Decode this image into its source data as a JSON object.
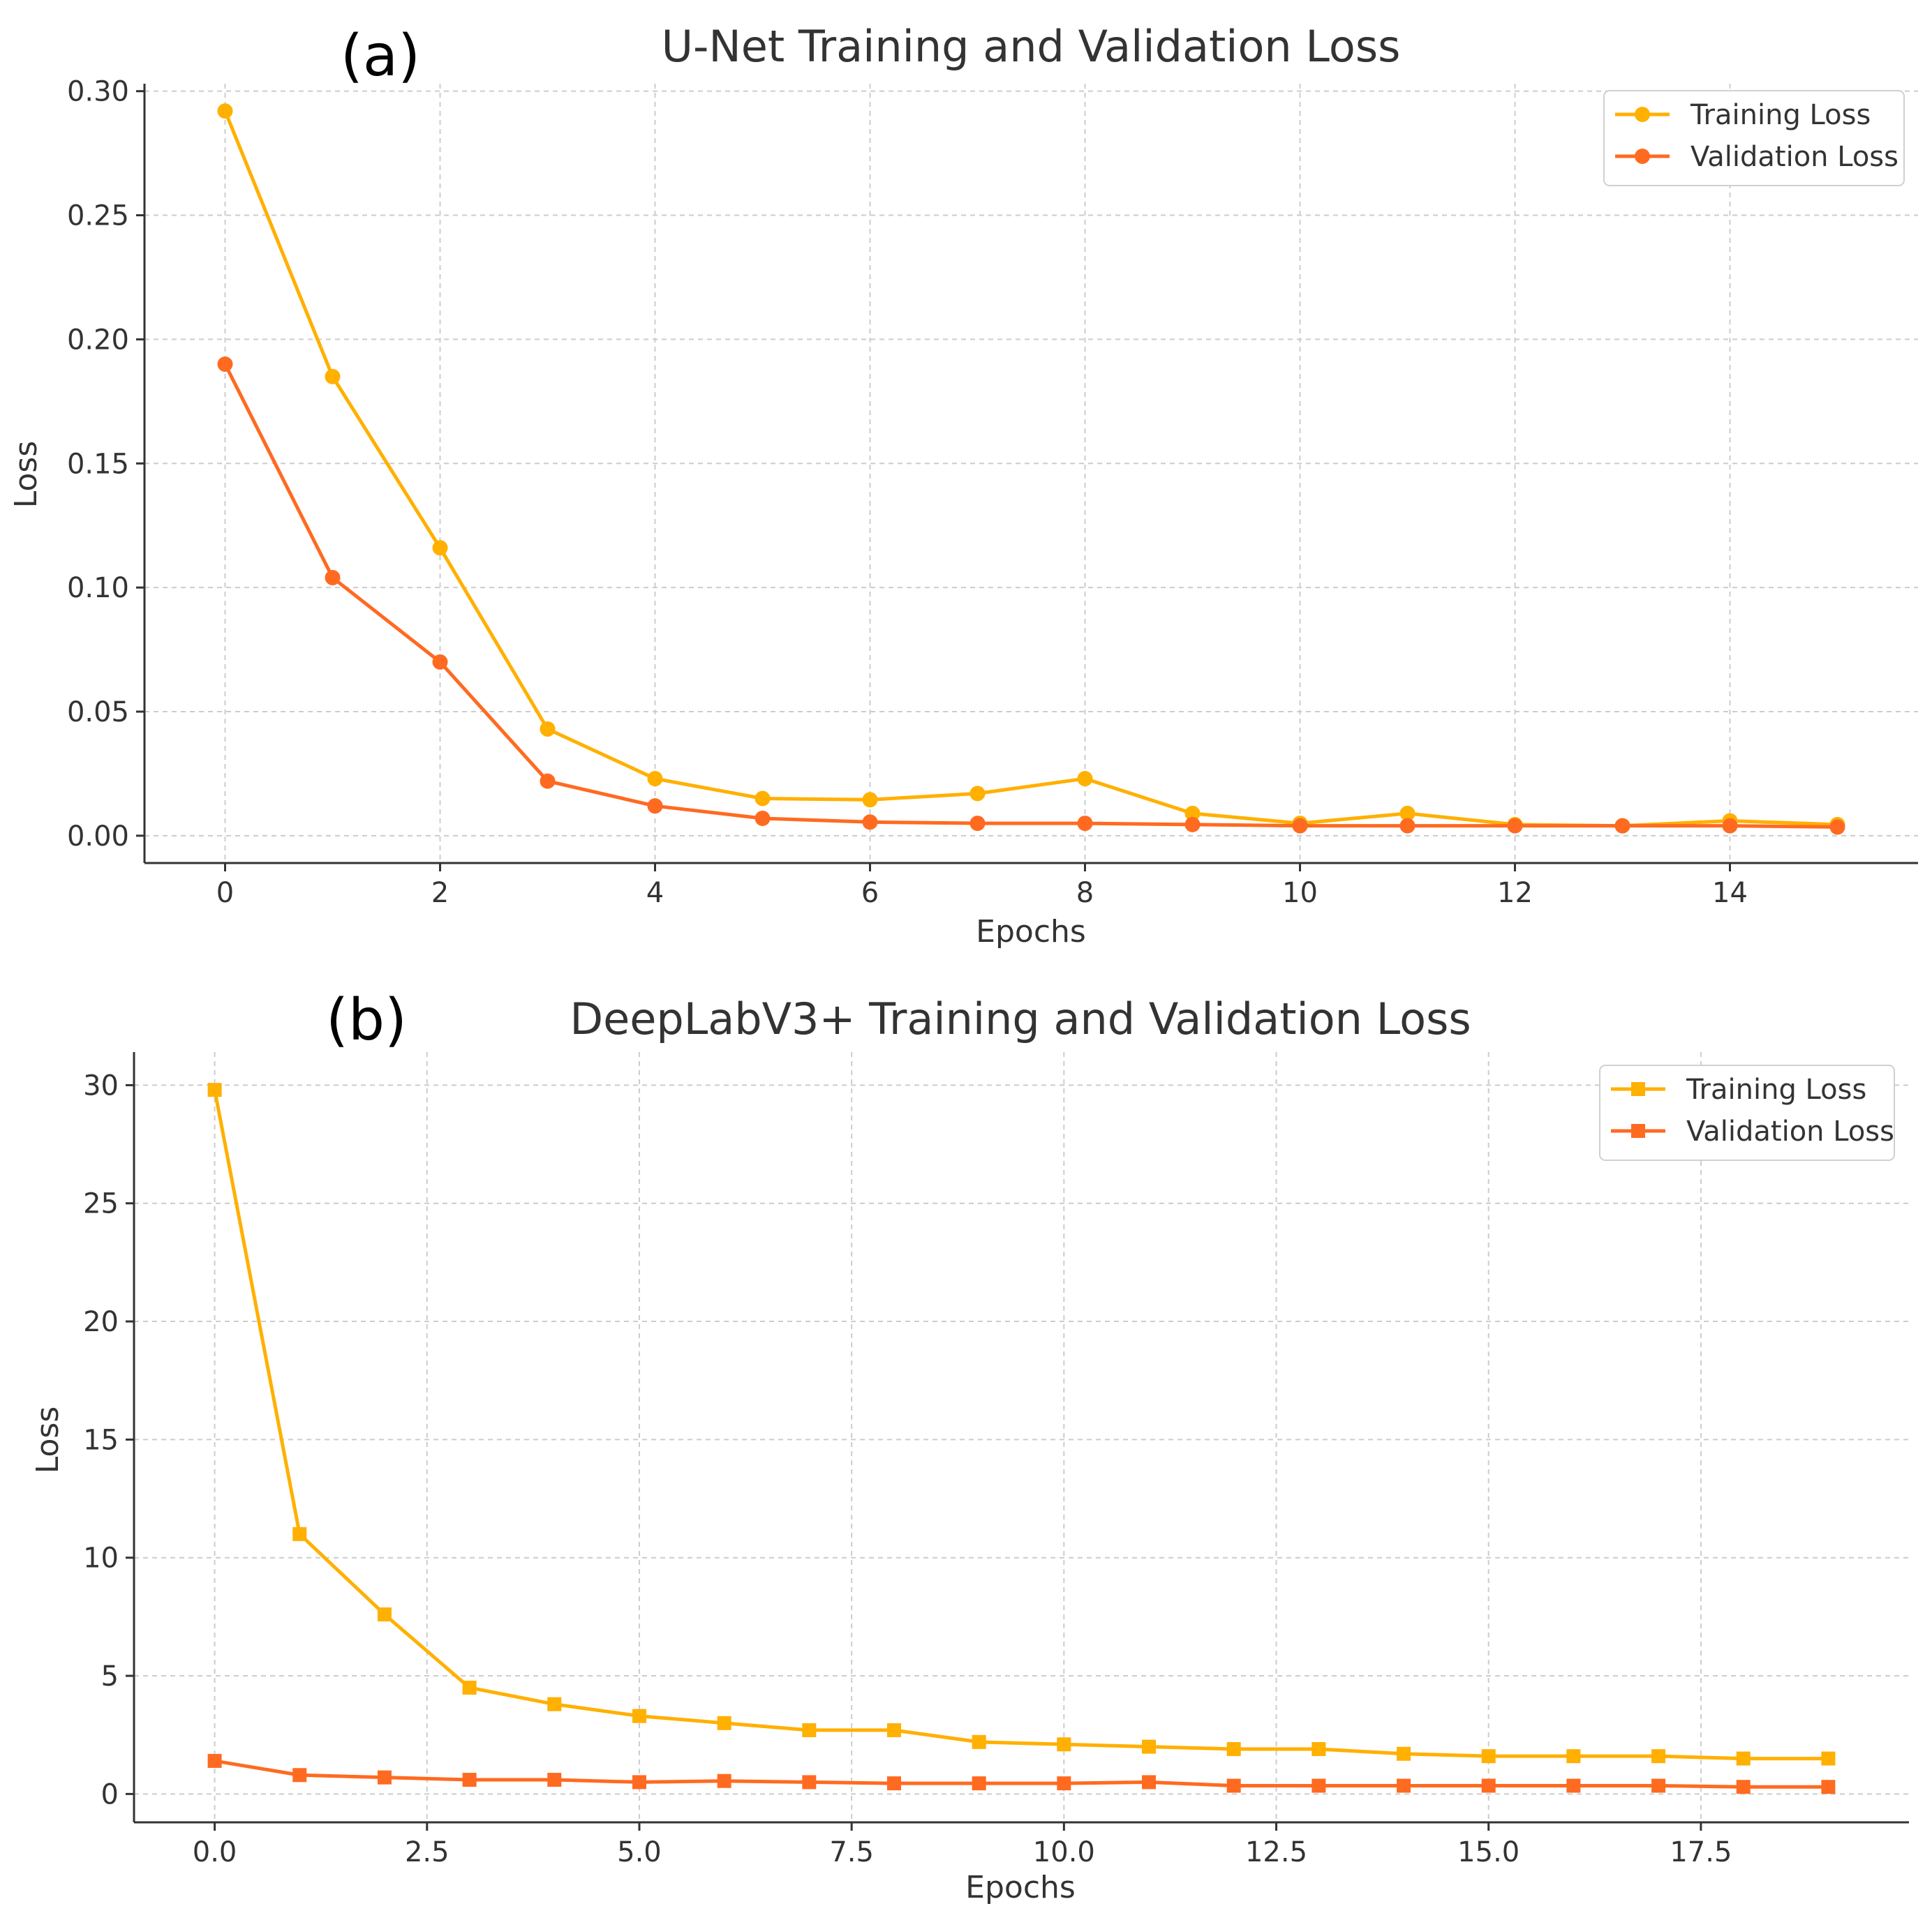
{
  "chart_data": [
    {
      "type": "line",
      "panel_label": "(a)",
      "title": "U-Net Training and Validation Loss",
      "xlabel": "Epochs",
      "ylabel": "Loss",
      "xlim": [
        -0.75,
        15.75
      ],
      "ylim": [
        -0.011,
        0.303
      ],
      "xticks": [
        0,
        2,
        4,
        6,
        8,
        10,
        12,
        14
      ],
      "xtick_labels": [
        "0",
        "2",
        "4",
        "6",
        "8",
        "10",
        "12",
        "14"
      ],
      "yticks": [
        0.0,
        0.05,
        0.1,
        0.15,
        0.2,
        0.25,
        0.3
      ],
      "ytick_labels": [
        "0.00",
        "0.05",
        "0.10",
        "0.15",
        "0.20",
        "0.25",
        "0.30"
      ],
      "grid": true,
      "legend_position": "top-right",
      "marker": "circle",
      "x": [
        0,
        1,
        2,
        3,
        4,
        5,
        6,
        7,
        8,
        9,
        10,
        11,
        12,
        13,
        14,
        15
      ],
      "series": [
        {
          "name": "Training Loss",
          "color": "#FFB000",
          "values": [
            0.292,
            0.185,
            0.116,
            0.043,
            0.023,
            0.015,
            0.0145,
            0.017,
            0.023,
            0.009,
            0.005,
            0.009,
            0.0045,
            0.004,
            0.006,
            0.0045
          ]
        },
        {
          "name": "Validation Loss",
          "color": "#FF6A21",
          "values": [
            0.19,
            0.104,
            0.07,
            0.022,
            0.012,
            0.007,
            0.0055,
            0.005,
            0.005,
            0.0045,
            0.004,
            0.004,
            0.004,
            0.004,
            0.004,
            0.0035
          ]
        }
      ]
    },
    {
      "type": "line",
      "panel_label": "(b)",
      "title": "DeepLabV3+ Training and Validation Loss",
      "xlabel": "Epochs",
      "ylabel": "Loss",
      "xlim": [
        -0.95,
        19.95
      ],
      "ylim": [
        -1.2,
        31.4
      ],
      "xticks": [
        0,
        2.5,
        5,
        7.5,
        10,
        12.5,
        15,
        17.5
      ],
      "xtick_labels": [
        "0.0",
        "2.5",
        "5.0",
        "7.5",
        "10.0",
        "12.5",
        "15.0",
        "17.5"
      ],
      "yticks": [
        0,
        5,
        10,
        15,
        20,
        25,
        30
      ],
      "ytick_labels": [
        "0",
        "5",
        "10",
        "15",
        "20",
        "25",
        "30"
      ],
      "grid": true,
      "legend_position": "top-right",
      "marker": "square",
      "x": [
        0,
        1,
        2,
        3,
        4,
        5,
        6,
        7,
        8,
        9,
        10,
        11,
        12,
        13,
        14,
        15,
        16,
        17,
        18,
        19
      ],
      "series": [
        {
          "name": "Training Loss",
          "color": "#FFB000",
          "values": [
            29.8,
            11.0,
            7.6,
            4.5,
            3.8,
            3.3,
            3.0,
            2.7,
            2.7,
            2.2,
            2.1,
            2.0,
            1.9,
            1.9,
            1.7,
            1.6,
            1.6,
            1.6,
            1.5,
            1.5
          ]
        },
        {
          "name": "Validation Loss",
          "color": "#FF6A21",
          "values": [
            1.4,
            0.8,
            0.7,
            0.6,
            0.6,
            0.5,
            0.55,
            0.5,
            0.45,
            0.45,
            0.45,
            0.5,
            0.35,
            0.35,
            0.35,
            0.35,
            0.35,
            0.35,
            0.3,
            0.3
          ]
        }
      ]
    }
  ]
}
